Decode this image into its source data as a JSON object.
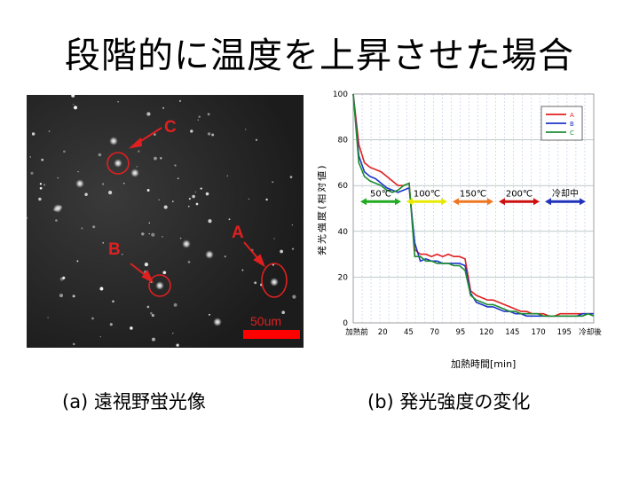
{
  "slide": {
    "title": "段階的に温度を上昇させた場合",
    "caption_a": "(a) 遠視野蛍光像",
    "caption_b": "(b) 発光強度の変化"
  },
  "micrograph": {
    "labels": {
      "c": "C",
      "b": "B",
      "a": "A"
    },
    "scale_bar": "50um",
    "colors": {
      "marker": "#e02020",
      "scale_bar": "#ff0000",
      "background": "#262626"
    }
  },
  "chart_data": {
    "type": "line",
    "ylabel": "発光強度(相対値)",
    "xlabel": "加熱時間[min]",
    "ylim": [
      0,
      100
    ],
    "yticks": [
      0,
      20,
      40,
      60,
      80,
      100
    ],
    "x_tick_labels": [
      "加熱前",
      "20",
      "45",
      "70",
      "95",
      "120",
      "145",
      "170",
      "195",
      "冷却後"
    ],
    "grid": true,
    "legend_position": "top-right",
    "phases": [
      {
        "label": "50℃",
        "color": "#22aa22"
      },
      {
        "label": "100℃",
        "color": "#e8e800"
      },
      {
        "label": "150℃",
        "color": "#ee7722"
      },
      {
        "label": "200℃",
        "color": "#cc1111"
      },
      {
        "label": "冷却中",
        "color": "#2233bb"
      }
    ],
    "series": [
      {
        "name": "A",
        "color": "#e02020",
        "values": [
          100,
          78,
          70,
          68,
          67,
          66,
          64,
          62,
          60,
          60,
          61,
          32,
          30,
          30,
          29,
          30,
          29,
          30,
          29,
          29,
          28,
          14,
          12,
          11,
          10,
          10,
          9,
          8,
          7,
          6,
          5,
          5,
          4,
          4,
          4,
          3,
          3,
          4,
          4,
          4,
          4,
          4,
          4,
          4
        ]
      },
      {
        "name": "B",
        "color": "#1f35c8",
        "values": [
          100,
          73,
          66,
          64,
          63,
          61,
          59,
          58,
          57,
          58,
          59,
          35,
          27,
          28,
          27,
          27,
          26,
          26,
          26,
          26,
          25,
          13,
          9,
          8,
          7,
          7,
          6,
          5,
          5,
          4,
          4,
          3,
          3,
          3,
          3,
          3,
          3,
          3,
          3,
          3,
          3,
          4,
          4,
          4
        ]
      },
      {
        "name": "C",
        "color": "#1c8c30",
        "values": [
          100,
          70,
          64,
          62,
          61,
          60,
          58,
          57,
          58,
          60,
          61,
          29,
          29,
          27,
          27,
          26,
          26,
          26,
          25,
          25,
          23,
          12,
          10,
          9,
          8,
          8,
          7,
          6,
          5,
          5,
          4,
          4,
          4,
          4,
          3,
          3,
          3,
          3,
          3,
          3,
          3,
          3,
          4,
          3
        ]
      }
    ]
  }
}
